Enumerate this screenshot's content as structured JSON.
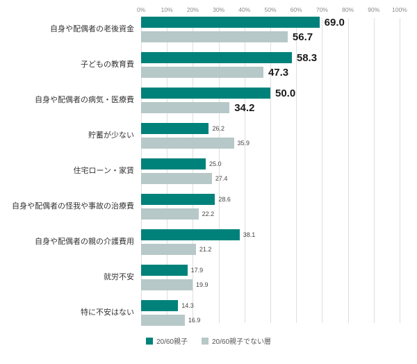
{
  "chart_data": {
    "type": "bar",
    "orientation": "horizontal",
    "title": "",
    "categories": [
      "自身や配偶者の老後資金",
      "子どもの教育費",
      "自身や配偶者の病気・医療費",
      "貯蓄が少ない",
      "住宅ローン・家賃",
      "自身や配偶者の怪我や事故の治療費",
      "自身や配偶者の親の介護費用",
      "就労不安",
      "特に不安はない"
    ],
    "series": [
      {
        "name": "20/60親子",
        "color": "#00827b",
        "values": [
          69.0,
          58.3,
          50.0,
          26.2,
          25.0,
          28.6,
          38.1,
          17.9,
          14.3
        ]
      },
      {
        "name": "20/60親子でない層",
        "color": "#b6c8c7",
        "values": [
          56.7,
          47.3,
          34.2,
          35.9,
          27.4,
          22.2,
          21.2,
          19.9,
          16.9
        ]
      }
    ],
    "x_ticks": [
      "0%",
      "10%",
      "20%",
      "30%",
      "40%",
      "50%",
      "60%",
      "70%",
      "80%",
      "90%",
      "100%"
    ],
    "xlim": [
      0,
      100
    ],
    "emphasized_rows": [
      0,
      1,
      2
    ],
    "grid": true,
    "legend_position": "bottom",
    "colors": {
      "grid": "#dedede",
      "tick_text": "#8a8a8a",
      "category_text": "#333333",
      "value_big_text": "#1a1a1a",
      "value_small_text": "#444444",
      "background": "#ffffff"
    }
  }
}
